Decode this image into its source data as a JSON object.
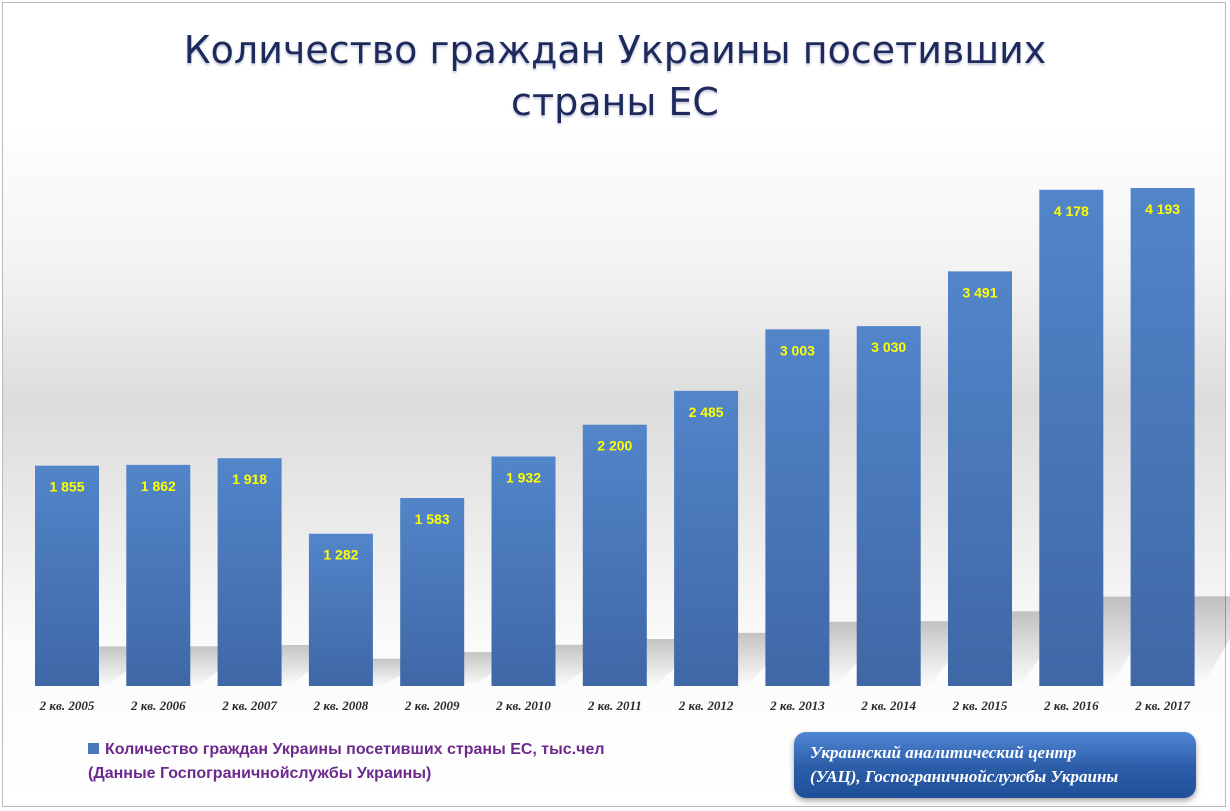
{
  "title_line1": "Количество граждан Украины посетивших",
  "title_line2": "страны ЕС",
  "legend": {
    "line1": "Количество граждан Украины посетивших страны ЕС, тыс.чел",
    "line2": "(Данные Госпограничнойслужбы Украины)"
  },
  "source": {
    "line1": "Украинский аналитический центр",
    "line2": "(УАЦ), Госпограничнойслужбы Украины"
  },
  "colors": {
    "bar": "#4a78bb",
    "data_label": "#ffff00",
    "legend_text": "#6b2a8c",
    "title": "#1f2a5c"
  },
  "chart_data": {
    "type": "bar",
    "categories": [
      "2 кв. 2005",
      "2 кв. 2006",
      "2 кв. 2007",
      "2 кв. 2008",
      "2 кв. 2009",
      "2 кв. 2010",
      "2 кв. 2011",
      "2 кв. 2012",
      "2 кв. 2013",
      "2 кв. 2014",
      "2 кв. 2015",
      "2 кв. 2016",
      "2 кв. 2017"
    ],
    "values": [
      1855,
      1862,
      1918,
      1282,
      1583,
      1932,
      2200,
      2485,
      3003,
      3030,
      3491,
      4178,
      4193
    ],
    "labels": [
      "1 855",
      "1 862",
      "1 918",
      "1 282",
      "1 583",
      "1 932",
      "2 200",
      "2 485",
      "3 003",
      "3 030",
      "3 491",
      "4 178",
      "4 193"
    ],
    "series": [
      {
        "name": "Количество граждан Украины посетивших страны ЕС, тыс.чел",
        "values": [
          1855,
          1862,
          1918,
          1282,
          1583,
          1932,
          2200,
          2485,
          3003,
          3030,
          3491,
          4178,
          4193
        ]
      }
    ],
    "ylim": [
      0,
      4193
    ],
    "grid": false,
    "legend_position": "bottom-left"
  }
}
